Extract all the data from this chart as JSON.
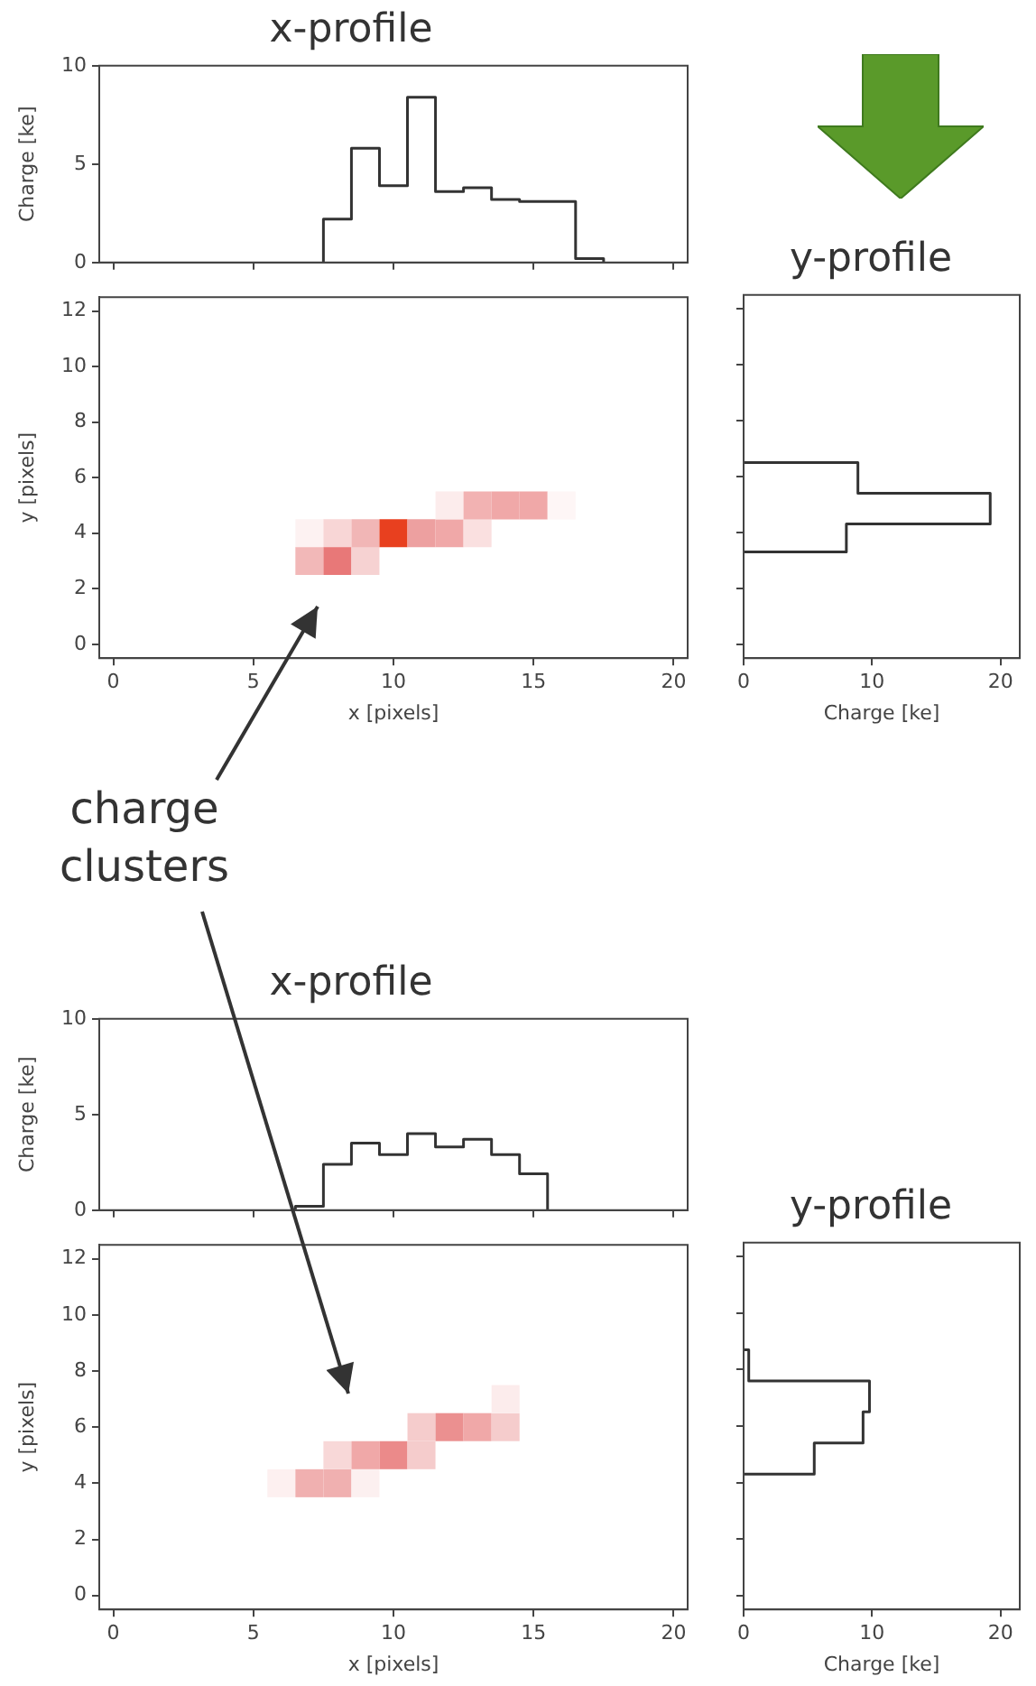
{
  "chart_data": [
    {
      "type": "histogram",
      "title": "x-profile",
      "ylabel": "Charge [ke]",
      "bins": [
        7.5,
        8.5,
        9.5,
        10.5,
        11.5,
        12.5,
        13.5,
        14.5,
        15.5,
        16.5,
        17.5
      ],
      "values": [
        2.2,
        5.8,
        3.9,
        8.4,
        3.6,
        3.8,
        3.2,
        3.1,
        3.1,
        0.2
      ],
      "color": "#333333",
      "xlim": [
        -0.5,
        20.5
      ],
      "xticks": [
        {
          "value": 0,
          "label": null
        },
        {
          "value": 5,
          "label": null
        },
        {
          "value": 10,
          "label": null
        },
        {
          "value": 15,
          "label": null
        },
        {
          "value": 20,
          "label": null
        }
      ],
      "ylim": [
        0,
        10
      ],
      "yticks": [
        0,
        5,
        10
      ],
      "tick_labels": "y"
    },
    {
      "type": "scatter",
      "xlabel": "x [pixels]",
      "ylabel": "y [pixels]",
      "marker": "square",
      "x": [
        7,
        8,
        9,
        7,
        8,
        9,
        10,
        11,
        12,
        13,
        12,
        13,
        14,
        15,
        16
      ],
      "values": [
        3,
        3,
        3,
        4,
        4,
        4,
        4,
        4,
        4,
        4,
        5,
        5,
        5,
        5,
        5
      ],
      "colors": [
        "#f2b8b8",
        "#e87878",
        "#f6d2d2",
        "#fdf2f2",
        "#f8d6d6",
        "#f1b6b6",
        "#e8401f",
        "#eda0a0",
        "#f0a8a8",
        "#fae0e0",
        "#fcecec",
        "#f2b2b2",
        "#f0a8a8",
        "#f0a8a8",
        "#fef6f6"
      ],
      "xlim": [
        -0.5,
        20.5
      ],
      "xticks": [
        0,
        5,
        10,
        15,
        20
      ],
      "ylim": [
        -0.5,
        12.5
      ],
      "yticks": [
        0,
        2,
        4,
        6,
        8,
        10,
        12
      ],
      "annotations": [
        "charge clusters"
      ]
    },
    {
      "type": "histogram",
      "orientation": "horizontal",
      "title": "y-profile",
      "xlabel": "Charge [ke]",
      "bins": [
        3.3,
        4.3,
        5.4,
        6.5
      ],
      "values": [
        8.0,
        19.2,
        8.9
      ],
      "color": "#333333",
      "xlim": [
        0,
        21.5
      ],
      "xticks": [
        0,
        10,
        20
      ],
      "ylim": [
        -0.5,
        12.5
      ],
      "yticks": [
        {
          "value": 0,
          "label": null
        },
        {
          "value": 2,
          "label": null
        },
        {
          "value": 4,
          "label": null
        },
        {
          "value": 6,
          "label": null
        },
        {
          "value": 8,
          "label": null
        },
        {
          "value": 10,
          "label": null
        },
        {
          "value": 12,
          "label": null
        }
      ],
      "tick_labels": "x"
    },
    {
      "type": "histogram",
      "title": "x-profile",
      "ylabel": "Charge [ke]",
      "bins": [
        6.5,
        7.5,
        8.5,
        9.5,
        10.5,
        11.5,
        12.5,
        13.5,
        14.5,
        15.5
      ],
      "values": [
        0.2,
        2.4,
        3.5,
        2.9,
        4.0,
        3.3,
        3.7,
        2.9,
        1.9
      ],
      "color": "#333333",
      "xlim": [
        -0.5,
        20.5
      ],
      "xticks": [
        {
          "value": 0,
          "label": null
        },
        {
          "value": 5,
          "label": null
        },
        {
          "value": 10,
          "label": null
        },
        {
          "value": 15,
          "label": null
        },
        {
          "value": 20,
          "label": null
        }
      ],
      "ylim": [
        0,
        10
      ],
      "yticks": [
        0,
        5,
        10
      ],
      "tick_labels": "y"
    },
    {
      "type": "scatter",
      "xlabel": "x [pixels]",
      "ylabel": "y [pixels]",
      "marker": "square",
      "x": [
        6,
        7,
        8,
        9,
        8,
        9,
        10,
        11,
        11,
        12,
        13,
        14,
        14
      ],
      "values": [
        4,
        4,
        4,
        4,
        5,
        5,
        5,
        5,
        6,
        6,
        6,
        6,
        7
      ],
      "colors": [
        "#fdf0f0",
        "#f0b0b0",
        "#f0b0b0",
        "#fcf0f0",
        "#f8d8d8",
        "#f0a8a8",
        "#eb8a8a",
        "#f5cccc",
        "#f5cccc",
        "#eb9090",
        "#f0a8a8",
        "#f5cccc",
        "#fcecec"
      ],
      "xlim": [
        -0.5,
        20.5
      ],
      "xticks": [
        0,
        5,
        10,
        15,
        20
      ],
      "ylim": [
        -0.5,
        12.5
      ],
      "yticks": [
        0,
        2,
        4,
        6,
        8,
        10,
        12
      ]
    },
    {
      "type": "histogram",
      "orientation": "horizontal",
      "title": "y-profile",
      "xlabel": "Charge [ke]",
      "bins": [
        4.3,
        5.4,
        6.5,
        7.6,
        8.7
      ],
      "values": [
        5.5,
        9.3,
        9.8,
        0.4
      ],
      "color": "#333333",
      "xlim": [
        0,
        21.5
      ],
      "xticks": [
        0,
        10,
        20
      ],
      "ylim": [
        -0.5,
        12.5
      ],
      "yticks": [
        {
          "value": 0,
          "label": null
        },
        {
          "value": 2,
          "label": null
        },
        {
          "value": 4,
          "label": null
        },
        {
          "value": 6,
          "label": null
        },
        {
          "value": 8,
          "label": null
        },
        {
          "value": 10,
          "label": null
        },
        {
          "value": 12,
          "label": null
        }
      ],
      "tick_labels": "x"
    }
  ]
}
